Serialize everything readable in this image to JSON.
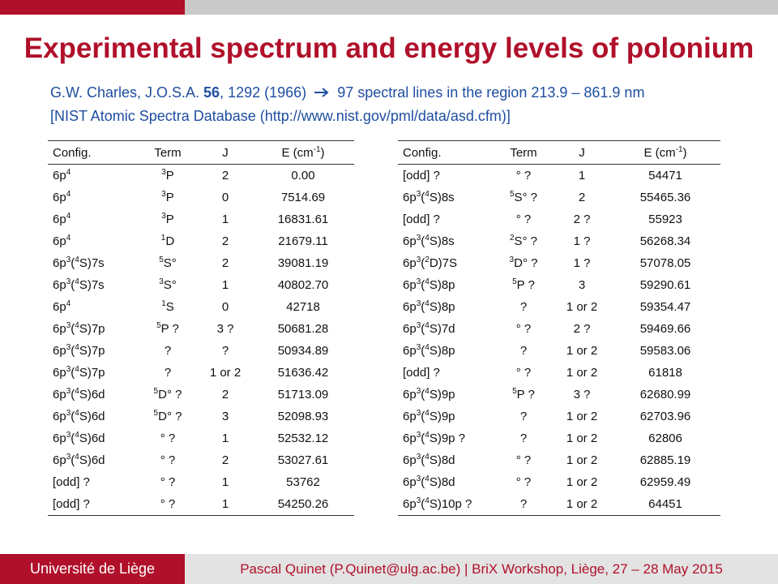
{
  "title": "Experimental spectrum and energy levels of polonium",
  "reference_line1": {
    "prefix": "G.W. Charles, J.O.S.A. ",
    "volume": "56",
    "suffix": ", 1292 (1966)",
    "arrow_icon": "right-arrow-icon",
    "summary": "97 spectral lines in the region 213.9 – 861.9 nm"
  },
  "reference_line2": "[NIST Atomic Spectra Database (http://www.nist.gov/pml/data/asd.cfm)]",
  "table_headers": {
    "config": "Config.",
    "term": "Term",
    "j": "J",
    "energy": "E (cm<sup>-1</sup>)"
  },
  "table_left": [
    {
      "config": "6p<sup>4</sup>",
      "term": "<sup>3</sup>P",
      "j": "2",
      "energy": "0.00"
    },
    {
      "config": "6p<sup>4</sup>",
      "term": "<sup>3</sup>P",
      "j": "0",
      "energy": "7514.69"
    },
    {
      "config": "6p<sup>4</sup>",
      "term": "<sup>3</sup>P",
      "j": "1",
      "energy": "16831.61"
    },
    {
      "config": "6p<sup>4</sup>",
      "term": "<sup>1</sup>D",
      "j": "2",
      "energy": "21679.11"
    },
    {
      "config": "6p<sup>3</sup>(<sup>4</sup>S)7s",
      "term": "<sup>5</sup>S°",
      "j": "2",
      "energy": "39081.19"
    },
    {
      "config": "6p<sup>3</sup>(<sup>4</sup>S)7s",
      "term": "<sup>3</sup>S°",
      "j": "1",
      "energy": "40802.70"
    },
    {
      "config": "6p<sup>4</sup>",
      "term": "<sup>1</sup>S",
      "j": "0",
      "energy": "42718"
    },
    {
      "config": "6p<sup>3</sup>(<sup>4</sup>S)7p",
      "term": "<sup>5</sup>P ?",
      "j": "3 ?",
      "energy": "50681.28"
    },
    {
      "config": "6p<sup>3</sup>(<sup>4</sup>S)7p",
      "term": "?",
      "j": "?",
      "energy": "50934.89"
    },
    {
      "config": "6p<sup>3</sup>(<sup>4</sup>S)7p",
      "term": "?",
      "j": "1 or 2",
      "energy": "51636.42"
    },
    {
      "config": "6p<sup>3</sup>(<sup>4</sup>S)6d",
      "term": "<sup>5</sup>D° ?",
      "j": "2",
      "energy": "51713.09"
    },
    {
      "config": "6p<sup>3</sup>(<sup>4</sup>S)6d",
      "term": "<sup>5</sup>D° ?",
      "j": "3",
      "energy": "52098.93"
    },
    {
      "config": "6p<sup>3</sup>(<sup>4</sup>S)6d",
      "term": "° ?",
      "j": "1",
      "energy": "52532.12"
    },
    {
      "config": "6p<sup>3</sup>(<sup>4</sup>S)6d",
      "term": "° ?",
      "j": "2",
      "energy": "53027.61"
    },
    {
      "config": "[odd] ?",
      "term": "° ?",
      "j": "1",
      "energy": "53762"
    },
    {
      "config": "[odd] ?",
      "term": "° ?",
      "j": "1",
      "energy": "54250.26"
    }
  ],
  "table_right": [
    {
      "config": "[odd] ?",
      "term": "° ?",
      "j": "1",
      "energy": "54471"
    },
    {
      "config": "6p<sup>3</sup>(<sup>4</sup>S)8s",
      "term": "<sup>5</sup>S° ?",
      "j": "2",
      "energy": "55465.36"
    },
    {
      "config": "[odd] ?",
      "term": "° ?",
      "j": "2 ?",
      "energy": "55923"
    },
    {
      "config": "6p<sup>3</sup>(<sup>4</sup>S)8s",
      "term": "<sup>2</sup>S° ?",
      "j": "1 ?",
      "energy": "56268.34"
    },
    {
      "config": "6p<sup>3</sup>(<sup>2</sup>D)7S",
      "term": "<sup>3</sup>D° ?",
      "j": "1 ?",
      "energy": "57078.05"
    },
    {
      "config": "6p<sup>3</sup>(<sup>4</sup>S)8p",
      "term": "<sup>5</sup>P ?",
      "j": "3",
      "energy": "59290.61"
    },
    {
      "config": "6p<sup>3</sup>(<sup>4</sup>S)8p",
      "term": "?",
      "j": "1 or 2",
      "energy": "59354.47"
    },
    {
      "config": "6p<sup>3</sup>(<sup>4</sup>S)7d",
      "term": "° ?",
      "j": "2 ?",
      "energy": "59469.66"
    },
    {
      "config": "6p<sup>3</sup>(<sup>4</sup>S)8p",
      "term": "?",
      "j": "1 or 2",
      "energy": "59583.06"
    },
    {
      "config": "[odd] ?",
      "term": "° ?",
      "j": "1 or 2",
      "energy": "61818"
    },
    {
      "config": "6p<sup>3</sup>(<sup>4</sup>S)9p",
      "term": "<sup>5</sup>P ?",
      "j": "3 ?",
      "energy": "62680.99"
    },
    {
      "config": "6p<sup>3</sup>(<sup>4</sup>S)9p",
      "term": "?",
      "j": "1 or 2",
      "energy": "62703.96"
    },
    {
      "config": "6p<sup>3</sup>(<sup>4</sup>S)9p ?",
      "term": "?",
      "j": "1 or 2",
      "energy": "62806"
    },
    {
      "config": "6p<sup>3</sup>(<sup>4</sup>S)8d",
      "term": "° ?",
      "j": "1 or 2",
      "energy": "62885.19"
    },
    {
      "config": "6p<sup>3</sup>(<sup>4</sup>S)8d",
      "term": "° ?",
      "j": "1 or 2",
      "energy": "62959.49"
    },
    {
      "config": "6p<sup>3</sup>(<sup>4</sup>S)10p ?",
      "term": "?",
      "j": "1 or 2",
      "energy": "64451"
    }
  ],
  "footer": {
    "university": "Université de Liège",
    "info": "Pascal Quinet (P.Quinet@ulg.ac.be)  |  BriX Workshop, Liège, 27 – 28 May 2015"
  },
  "colors": {
    "accent": "#b0102a",
    "link_blue": "#1f4ea0",
    "top_gray": "#c9c9c9",
    "footer_gray": "#e3e3e3"
  }
}
